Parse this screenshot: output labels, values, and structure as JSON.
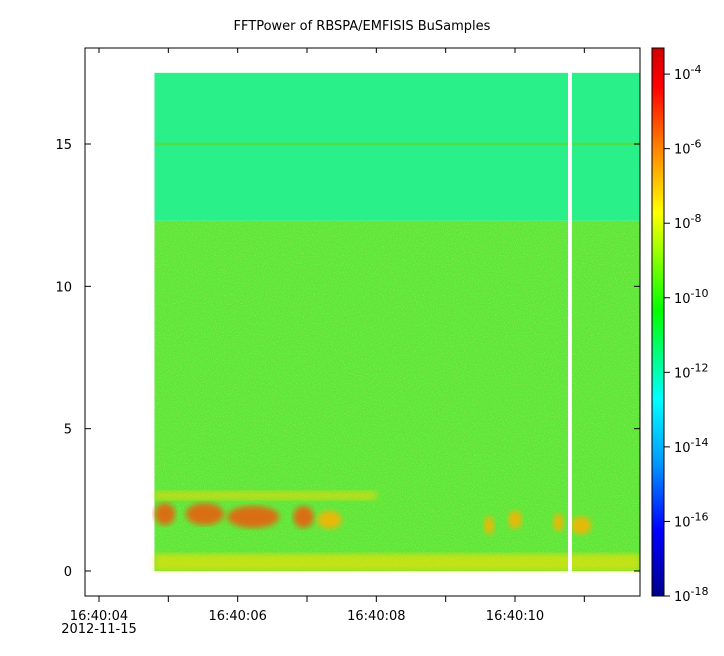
{
  "chart_data": {
    "type": "heatmap",
    "title": "FFTPower of RBSPA/EMFISIS  BuSamples",
    "xlabel": "",
    "ylabel": "",
    "x_ticks": [
      {
        "t": 4,
        "label": "16:40:04",
        "sublabel": "2012-11-15"
      },
      {
        "t": 5,
        "label": ""
      },
      {
        "t": 6,
        "label": "16:40:06"
      },
      {
        "t": 7,
        "label": ""
      },
      {
        "t": 8,
        "label": "16:40:08"
      },
      {
        "t": 9,
        "label": ""
      },
      {
        "t": 10,
        "label": "16:40:10"
      },
      {
        "t": 11,
        "label": ""
      }
    ],
    "xlim_seconds_after_16_40_00": [
      3.8,
      11.85
    ],
    "y_ticks": [
      0,
      5,
      10,
      15
    ],
    "ylim": [
      -0.8,
      18.5
    ],
    "data_extent": {
      "x_start": 4.8,
      "x_end": 11.85,
      "y_min": 0,
      "y_max": 17.5
    },
    "gap": {
      "x_start": 10.75,
      "x_end": 10.8
    },
    "colorbar": {
      "scale": "log",
      "range": [
        -18,
        -3.3
      ],
      "ticks": [
        {
          "exp": -4,
          "label": "10",
          "sup": "-4"
        },
        {
          "exp": -6,
          "label": "10",
          "sup": "-6"
        },
        {
          "exp": -8,
          "label": "10",
          "sup": "-8"
        },
        {
          "exp": -10,
          "label": "10",
          "sup": "-10"
        },
        {
          "exp": -12,
          "label": "10",
          "sup": "-12"
        },
        {
          "exp": -14,
          "label": "10",
          "sup": "-14"
        },
        {
          "exp": -16,
          "label": "10",
          "sup": "-16"
        },
        {
          "exp": -18,
          "label": "10",
          "sup": "-18"
        }
      ],
      "colors": [
        "#00008b",
        "#0000ff",
        "#00a0ff",
        "#00ffff",
        "#00ff00",
        "#ffff00",
        "#ff8000",
        "#ff0000",
        "#d00000"
      ]
    },
    "bands": [
      {
        "y_min": 12.3,
        "y_max": 17.5,
        "level_exp": -12.2,
        "description_color": "#2af08a"
      },
      {
        "y_min": 0,
        "y_max": 12.3,
        "level_exp": -10.2,
        "description_color": "#5ee63a"
      },
      {
        "y_min": 14.95,
        "y_max": 15.05,
        "level_exp": -10.0,
        "description_color": "#4de04a"
      }
    ],
    "bursts": [
      {
        "x_start": 4.8,
        "x_end": 5.1,
        "y_center": 2.0,
        "level_exp": -6.8
      },
      {
        "x_start": 5.25,
        "x_end": 5.8,
        "y_center": 2.0,
        "level_exp": -6.5
      },
      {
        "x_start": 5.85,
        "x_end": 6.6,
        "y_center": 1.9,
        "level_exp": -6.7
      },
      {
        "x_start": 6.8,
        "x_end": 7.1,
        "y_center": 1.9,
        "level_exp": -7.0
      },
      {
        "x_start": 7.15,
        "x_end": 7.5,
        "y_center": 1.8,
        "level_exp": -7.2
      },
      {
        "x_start": 9.55,
        "x_end": 9.7,
        "y_center": 1.6,
        "level_exp": -8.0
      },
      {
        "x_start": 9.9,
        "x_end": 10.1,
        "y_center": 1.8,
        "level_exp": -8.0
      },
      {
        "x_start": 10.55,
        "x_end": 10.7,
        "y_center": 1.7,
        "level_exp": -8.0
      },
      {
        "x_start": 10.8,
        "x_end": 11.1,
        "y_center": 1.6,
        "level_exp": -7.2
      }
    ]
  }
}
